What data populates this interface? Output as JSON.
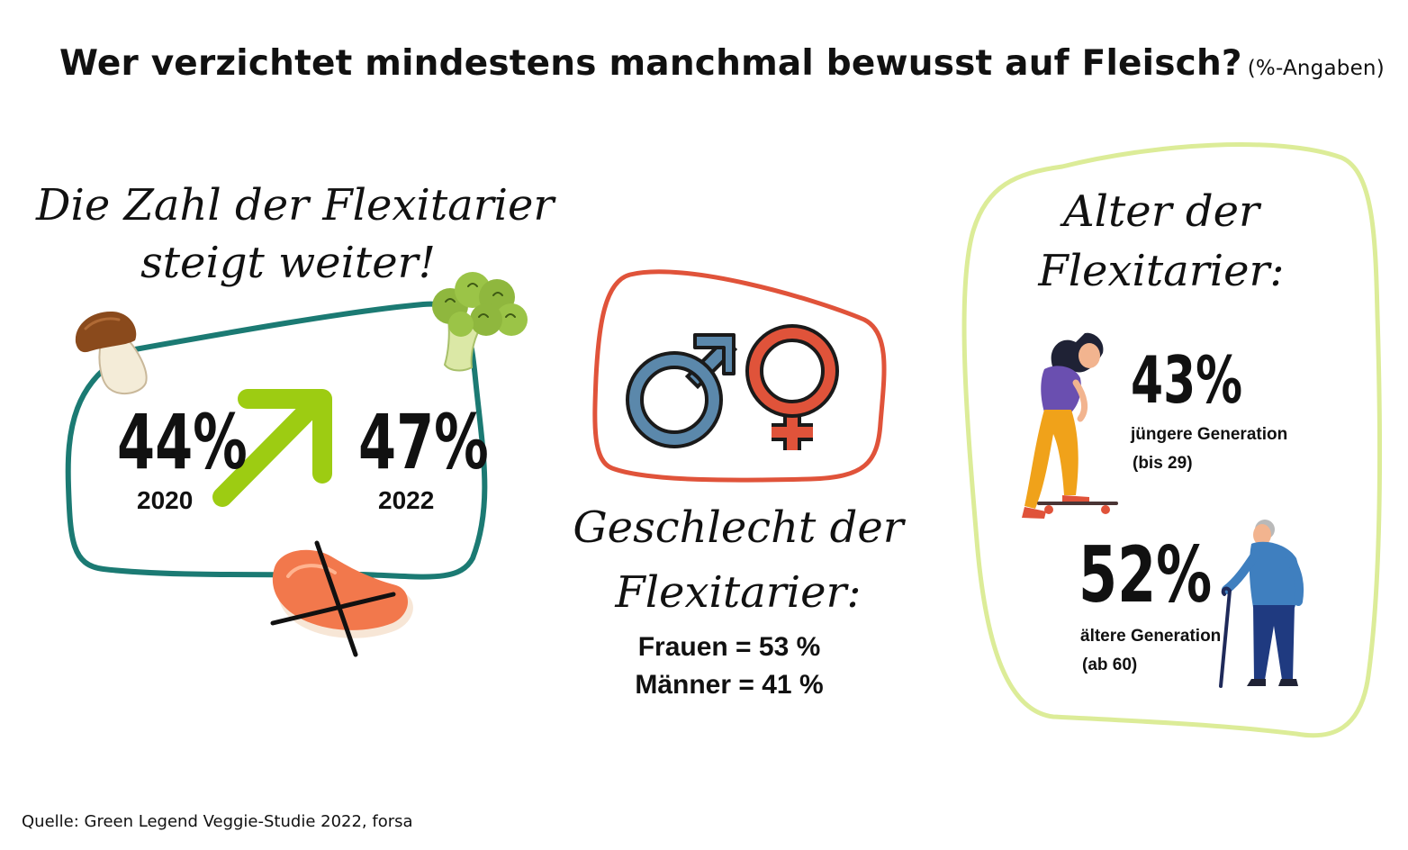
{
  "title": "Wer verzichtet mindestens manchmal bewusst auf Fleisch?",
  "title_unit": "(%-Angaben)",
  "trend": {
    "heading_line1": "Die Zahl der Flexitarier",
    "heading_line2": "steigt weiter!",
    "value_2020": "44%",
    "year_2020": "2020",
    "value_2022": "47%",
    "year_2022": "2022",
    "frame_color": "#1b7a73",
    "arrow_color": "#9dcc12"
  },
  "gender": {
    "heading_line1": "Geschlecht der",
    "heading_line2": "Flexitarier:",
    "women": "Frauen = 53 %",
    "men": "Männer = 41 %",
    "frame_color": "#e0533a",
    "male_color": "#5b88ab",
    "female_color": "#e0533a"
  },
  "age": {
    "heading_line1": "Alter der",
    "heading_line2": "Flexitarier:",
    "young_value": "43%",
    "young_label": "jüngere Generation",
    "young_range": "(bis 29)",
    "old_value": "52%",
    "old_label": "ältere Generation",
    "old_range": "(ab 60)",
    "frame_color": "#dcec98"
  },
  "source": "Quelle: Green Legend Veggie-Studie 2022, forsa",
  "icons": [
    "mushroom-icon",
    "broccoli-icon",
    "crossed-meat-icon",
    "male-symbol-icon",
    "female-symbol-icon",
    "skateboarder-icon",
    "senior-with-cane-icon"
  ]
}
